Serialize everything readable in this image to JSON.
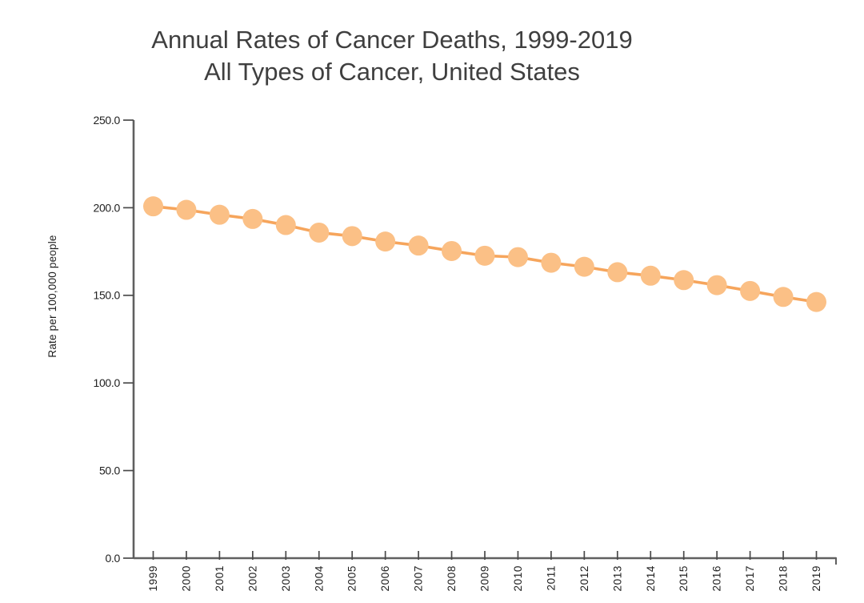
{
  "title": {
    "line1": "Annual Rates of Cancer Deaths, 1999-2019",
    "line2": "All Types of Cancer, United States"
  },
  "chart_data": {
    "type": "line",
    "title": "Annual Rates of Cancer Deaths, 1999-2019 / All Types of Cancer, United States",
    "xlabel": "",
    "ylabel": "Rate per 100,000 people",
    "categories": [
      "1999",
      "2000",
      "2001",
      "2002",
      "2003",
      "2004",
      "2005",
      "2006",
      "2007",
      "2008",
      "2009",
      "2010",
      "2011",
      "2012",
      "2013",
      "2014",
      "2015",
      "2016",
      "2017",
      "2018",
      "2019"
    ],
    "values": [
      200.8,
      198.8,
      196.0,
      193.6,
      190.1,
      185.8,
      183.8,
      180.7,
      178.4,
      175.3,
      172.6,
      171.8,
      168.6,
      166.3,
      163.2,
      161.2,
      158.7,
      155.8,
      152.5,
      149.1,
      146.2
    ],
    "ylim": [
      0,
      250
    ],
    "y_tick_labels": [
      "0.0",
      "50.0",
      "100.0",
      "150.0",
      "200.0",
      "250.0"
    ],
    "grid": false,
    "legend": false,
    "marker_shape": "circle",
    "marker_color": "#fbc086",
    "line_color": "#f6a55c",
    "axis_color": "#606060",
    "tick_color": "#4a4a4a",
    "tick_label_color": "#1f1f1f",
    "title_color": "#3f3f3f",
    "background_color": "#ffffff"
  }
}
